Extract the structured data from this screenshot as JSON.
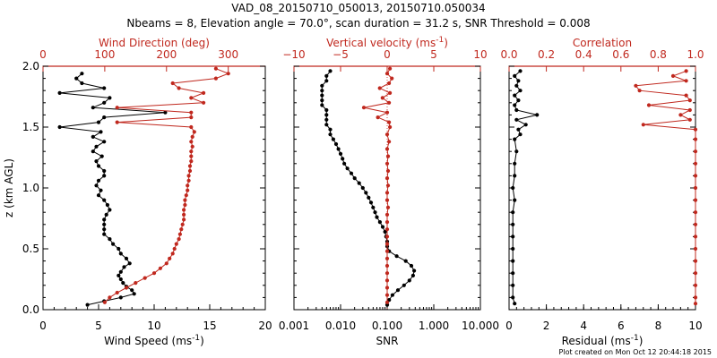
{
  "title_line1": "VAD_08_20150710_050013, 20150710.050034",
  "title_line2": "Nbeams = 8, Elevation angle = 70.0°, scan duration = 31.2 s, SNR Threshold = 0.008",
  "footer": "Plot created on Mon Oct 12 20:44:18 2015",
  "colors": {
    "black": "#000000",
    "red": "#c0281e"
  },
  "chart_data": [
    {
      "type": "line",
      "name": "wind",
      "ylabel": "z (km AGL)",
      "ylim": [
        0,
        2
      ],
      "yticks": [
        "0.0",
        "0.5",
        "1.0",
        "1.5",
        "2.0"
      ],
      "bottom_axis": {
        "label": "Wind Speed (ms",
        "label_exp": "-1",
        "label_end": ")",
        "range": [
          0,
          20
        ],
        "ticks": [
          "0",
          "5",
          "10",
          "15",
          "20"
        ]
      },
      "top_axis": {
        "label": "Wind Direction (deg)",
        "range": [
          0,
          360
        ],
        "ticks": [
          "0",
          "100",
          "200",
          "300"
        ]
      },
      "series": [
        {
          "name": "Wind Speed",
          "color": "#000000",
          "axis": "bottom",
          "z": [
            0.04,
            0.07,
            0.1,
            0.13,
            0.16,
            0.19,
            0.22,
            0.25,
            0.28,
            0.31,
            0.35,
            0.38,
            0.42,
            0.46,
            0.5,
            0.54,
            0.58,
            0.62,
            0.66,
            0.7,
            0.74,
            0.78,
            0.82,
            0.86,
            0.9,
            0.94,
            0.98,
            1.02,
            1.06,
            1.1,
            1.14,
            1.18,
            1.22,
            1.26,
            1.3,
            1.34,
            1.38,
            1.42,
            1.46,
            1.5,
            1.54,
            1.58,
            1.62,
            1.66,
            1.7,
            1.74,
            1.78,
            1.82,
            1.86,
            1.9,
            1.94
          ],
          "values": [
            4.0,
            5.5,
            7.0,
            8.2,
            8.0,
            7.5,
            7.2,
            7.0,
            6.8,
            7.0,
            7.3,
            7.8,
            7.5,
            7.0,
            6.8,
            6.3,
            6.0,
            5.5,
            5.5,
            5.5,
            5.5,
            5.7,
            6.0,
            5.8,
            5.5,
            5.0,
            5.2,
            4.8,
            5.0,
            5.5,
            5.5,
            5.0,
            4.8,
            5.3,
            4.5,
            4.8,
            5.5,
            4.5,
            5.2,
            1.5,
            5.0,
            5.5,
            11.0,
            4.5,
            5.5,
            6.0,
            1.5,
            5.5,
            3.5,
            3.0,
            3.5
          ]
        },
        {
          "name": "Wind Direction",
          "color": "#c0281e",
          "axis": "top",
          "z": [
            0.06,
            0.1,
            0.14,
            0.18,
            0.22,
            0.26,
            0.3,
            0.34,
            0.38,
            0.42,
            0.46,
            0.5,
            0.54,
            0.58,
            0.62,
            0.66,
            0.7,
            0.74,
            0.78,
            0.82,
            0.86,
            0.9,
            0.94,
            0.98,
            1.02,
            1.06,
            1.1,
            1.14,
            1.18,
            1.22,
            1.26,
            1.3,
            1.34,
            1.38,
            1.42,
            1.46,
            1.5,
            1.54,
            1.58,
            1.62,
            1.66,
            1.7,
            1.74,
            1.78,
            1.82,
            1.86,
            1.9,
            1.94,
            1.98
          ],
          "values": [
            100,
            108,
            120,
            135,
            150,
            165,
            180,
            190,
            200,
            205,
            210,
            213,
            216,
            220,
            222,
            224,
            226,
            228,
            228,
            228,
            230,
            230,
            232,
            234,
            234,
            236,
            236,
            238,
            238,
            240,
            240,
            240,
            242,
            240,
            242,
            245,
            240,
            120,
            240,
            240,
            120,
            260,
            240,
            260,
            220,
            210,
            280,
            300,
            280
          ]
        }
      ]
    },
    {
      "type": "line",
      "name": "vertical-velocity",
      "ylim": [
        0,
        2
      ],
      "bottom_axis": {
        "label": "SNR",
        "scale": "log",
        "range": [
          0.001,
          10
        ],
        "ticks": [
          "0.001",
          "0.010",
          "0.100",
          "1.000",
          "10.000"
        ]
      },
      "top_axis": {
        "label": "Vertical velocity (ms",
        "label_exp": "-1",
        "label_end": ")",
        "range": [
          -10,
          10
        ],
        "ticks": [
          "−10",
          "−5",
          "0",
          "5",
          "10"
        ]
      },
      "series": [
        {
          "name": "SNR",
          "color": "#000000",
          "axis": "bottom",
          "z": [
            0.04,
            0.08,
            0.12,
            0.16,
            0.2,
            0.24,
            0.28,
            0.32,
            0.36,
            0.4,
            0.44,
            0.48,
            0.52,
            0.56,
            0.6,
            0.64,
            0.68,
            0.72,
            0.76,
            0.8,
            0.84,
            0.88,
            0.92,
            0.96,
            1.0,
            1.04,
            1.08,
            1.12,
            1.16,
            1.2,
            1.24,
            1.28,
            1.32,
            1.36,
            1.4,
            1.44,
            1.48,
            1.52,
            1.56,
            1.6,
            1.64,
            1.68,
            1.72,
            1.76,
            1.8,
            1.84,
            1.88,
            1.92,
            1.96
          ],
          "values": [
            0.1,
            0.11,
            0.13,
            0.17,
            0.23,
            0.3,
            0.36,
            0.38,
            0.33,
            0.25,
            0.16,
            0.11,
            0.1,
            0.1,
            0.095,
            0.09,
            0.08,
            0.07,
            0.06,
            0.055,
            0.05,
            0.045,
            0.04,
            0.035,
            0.03,
            0.025,
            0.02,
            0.017,
            0.014,
            0.012,
            0.011,
            0.01,
            0.009,
            0.008,
            0.007,
            0.006,
            0.006,
            0.005,
            0.005,
            0.005,
            0.005,
            0.004,
            0.004,
            0.004,
            0.004,
            0.004,
            0.005,
            0.005,
            0.006
          ]
        },
        {
          "name": "Vertical velocity",
          "color": "#c0281e",
          "axis": "top",
          "z": [
            0.06,
            0.12,
            0.18,
            0.24,
            0.3,
            0.36,
            0.42,
            0.48,
            0.54,
            0.6,
            0.66,
            0.72,
            0.78,
            0.84,
            0.9,
            0.96,
            1.02,
            1.08,
            1.14,
            1.2,
            1.26,
            1.32,
            1.38,
            1.44,
            1.5,
            1.54,
            1.58,
            1.62,
            1.66,
            1.7,
            1.74,
            1.78,
            1.82,
            1.86,
            1.9,
            1.94,
            1.98
          ],
          "values": [
            0.0,
            0.0,
            0.0,
            0.0,
            0.0,
            0.0,
            0.0,
            0.0,
            0.0,
            0.0,
            0.0,
            0.0,
            0.0,
            0.1,
            0.0,
            0.0,
            0.1,
            0.0,
            0.1,
            0.0,
            0.1,
            0.0,
            0.2,
            0.0,
            0.3,
            0.2,
            -1.0,
            0.0,
            -2.5,
            0.2,
            -0.5,
            0.3,
            -0.8,
            0.2,
            0.5,
            0.0,
            0.3
          ]
        }
      ]
    },
    {
      "type": "line",
      "name": "correlation",
      "ylim": [
        0,
        2
      ],
      "bottom_axis": {
        "label": "Residual (ms",
        "label_exp": "-1",
        "label_end": ")",
        "range": [
          0,
          10
        ],
        "ticks": [
          "0",
          "2",
          "4",
          "6",
          "8",
          "10"
        ]
      },
      "top_axis": {
        "label": "Correlation",
        "range": [
          0,
          1
        ],
        "ticks": [
          "0.0",
          "0.2",
          "0.4",
          "0.6",
          "0.8",
          "1.0"
        ]
      },
      "series": [
        {
          "name": "Residual",
          "color": "#000000",
          "axis": "bottom",
          "z": [
            0.05,
            0.1,
            0.2,
            0.3,
            0.4,
            0.5,
            0.6,
            0.7,
            0.8,
            0.9,
            1.0,
            1.1,
            1.2,
            1.3,
            1.4,
            1.44,
            1.48,
            1.52,
            1.56,
            1.6,
            1.64,
            1.68,
            1.72,
            1.76,
            1.8,
            1.84,
            1.88,
            1.92,
            1.96
          ],
          "values": [
            0.3,
            0.2,
            0.2,
            0.2,
            0.2,
            0.2,
            0.2,
            0.2,
            0.2,
            0.3,
            0.2,
            0.3,
            0.3,
            0.4,
            0.3,
            0.6,
            0.5,
            0.9,
            0.4,
            1.5,
            0.4,
            0.3,
            0.5,
            0.3,
            0.6,
            0.4,
            0.5,
            0.3,
            0.6
          ]
        },
        {
          "name": "Correlation",
          "color": "#c0281e",
          "axis": "top",
          "z": [
            0.05,
            0.1,
            0.2,
            0.3,
            0.4,
            0.5,
            0.6,
            0.7,
            0.8,
            0.9,
            1.0,
            1.1,
            1.2,
            1.3,
            1.4,
            1.48,
            1.52,
            1.56,
            1.6,
            1.64,
            1.68,
            1.72,
            1.76,
            1.8,
            1.84,
            1.88,
            1.92,
            1.96
          ],
          "values": [
            1.0,
            1.0,
            1.0,
            1.0,
            1.0,
            1.0,
            1.0,
            1.0,
            1.0,
            1.0,
            1.0,
            1.0,
            1.0,
            1.0,
            1.0,
            1.0,
            0.72,
            0.97,
            0.92,
            0.97,
            0.75,
            0.97,
            0.95,
            0.7,
            0.68,
            0.95,
            0.88,
            0.95
          ]
        }
      ]
    }
  ]
}
